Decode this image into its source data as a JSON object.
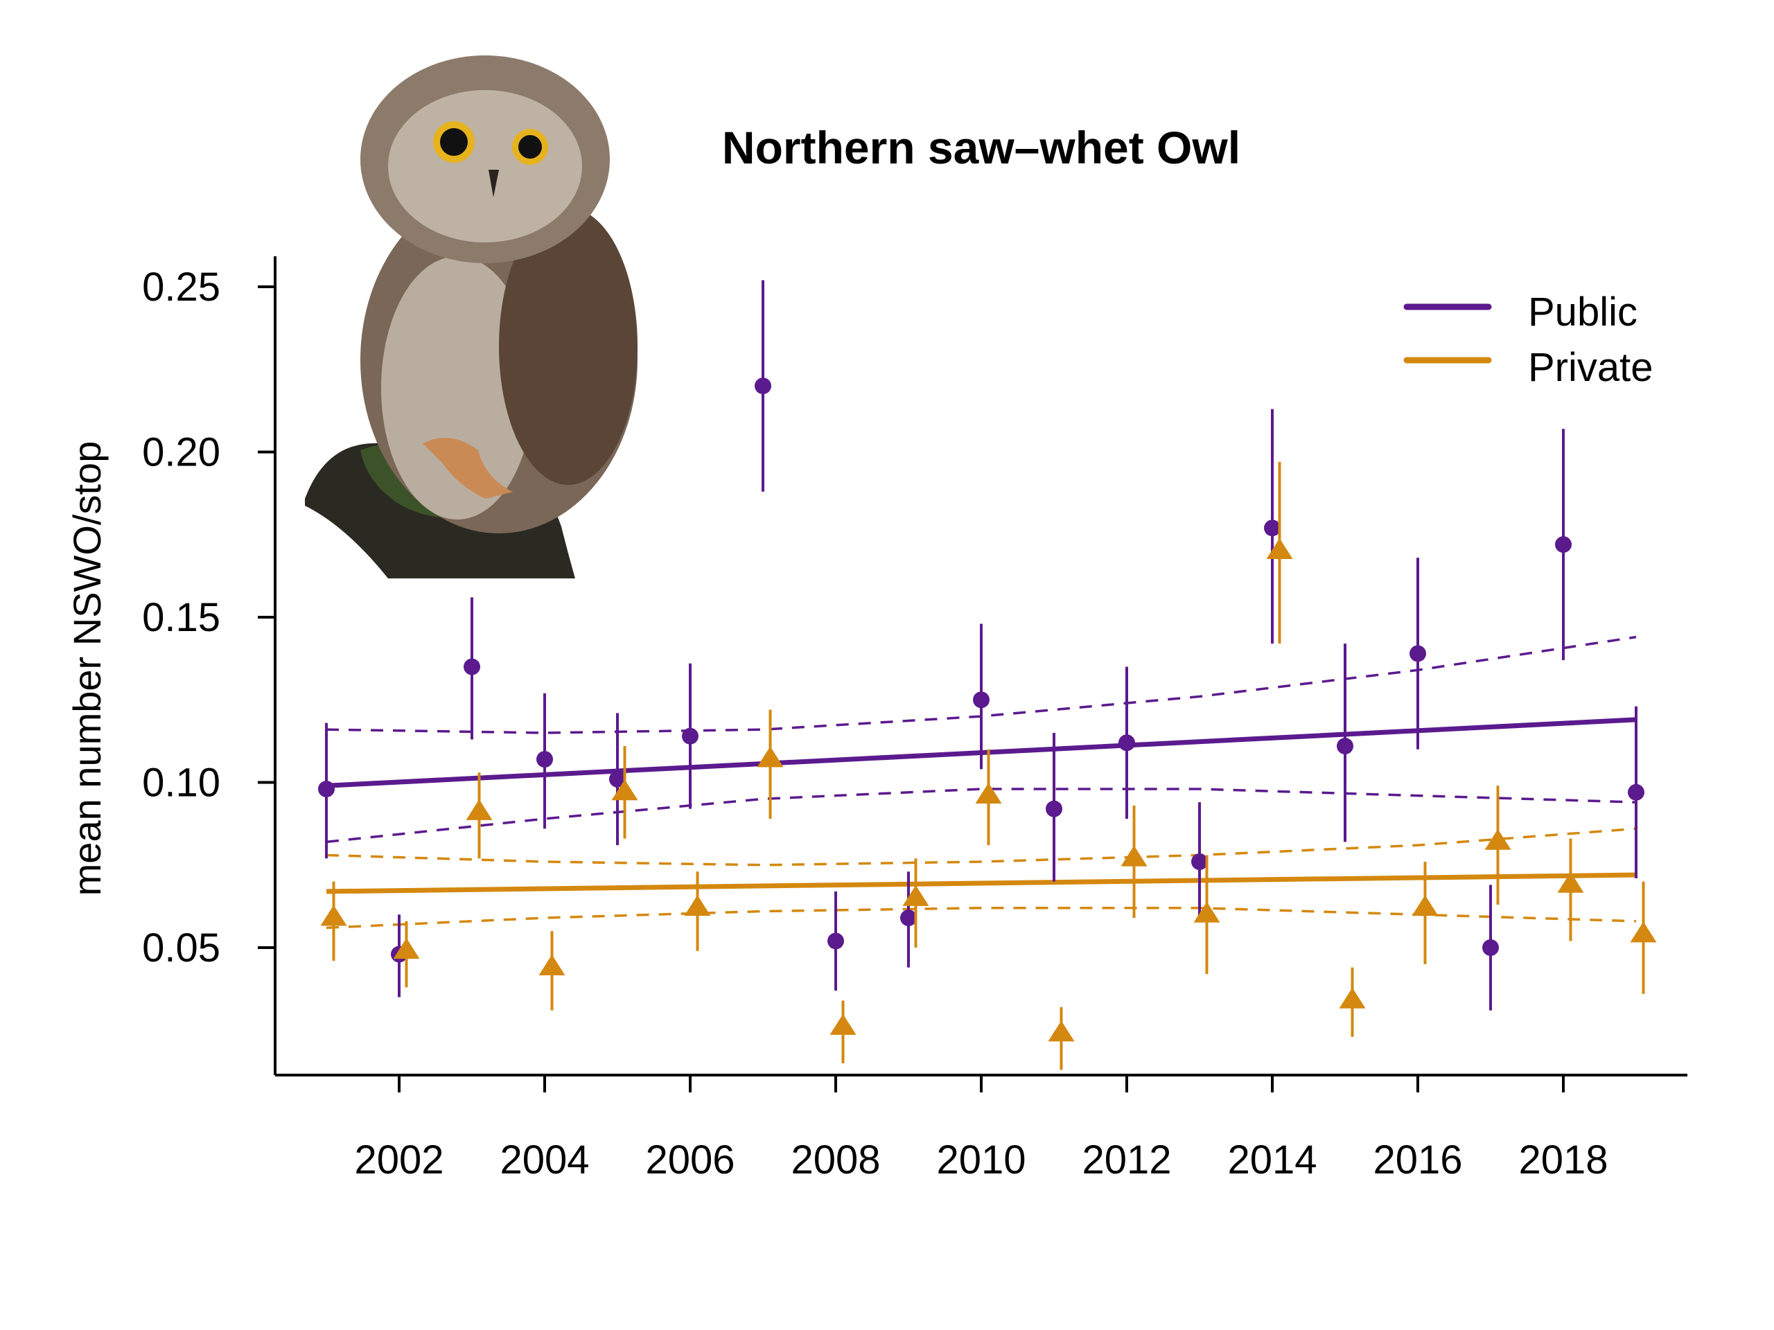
{
  "chart_data": {
    "type": "scatter",
    "title": "Northern saw–whet Owl",
    "xlabel": "",
    "ylabel": "mean number NSWO/stop",
    "xlim": [
      2000.15,
      2019.6
    ],
    "ylim": [
      0.011,
      0.26
    ],
    "x_ticks": [
      2002,
      2004,
      2006,
      2008,
      2010,
      2012,
      2014,
      2016,
      2018
    ],
    "x_tick_labels": [
      "2002",
      "2004",
      "2006",
      "2008",
      "2010",
      "2012",
      "2014",
      "2016",
      "2018"
    ],
    "y_ticks": [
      0.05,
      0.1,
      0.15,
      0.2,
      0.25
    ],
    "y_tick_labels": [
      "0.05",
      "0.10",
      "0.15",
      "0.20",
      "0.25"
    ],
    "grid": false,
    "legend": {
      "position": "top-right",
      "entries": [
        "Public",
        "Private"
      ]
    },
    "illustration": "owl-photo",
    "series": [
      {
        "name": "Public",
        "color": "#5b1a8e",
        "marker": "circle",
        "x_offset": 0,
        "x": [
          2001,
          2002,
          2003,
          2004,
          2005,
          2006,
          2007,
          2008,
          2009,
          2010,
          2011,
          2012,
          2013,
          2014,
          2015,
          2016,
          2017,
          2018,
          2019
        ],
        "y": [
          0.098,
          0.048,
          0.135,
          0.107,
          0.101,
          0.114,
          0.22,
          0.052,
          0.059,
          0.125,
          0.092,
          0.112,
          0.076,
          0.177,
          0.111,
          0.139,
          0.05,
          0.172,
          0.097
        ],
        "ci_low": [
          0.077,
          0.035,
          0.113,
          0.086,
          0.081,
          0.092,
          0.188,
          0.037,
          0.044,
          0.104,
          0.07,
          0.089,
          0.059,
          0.142,
          0.082,
          0.11,
          0.031,
          0.137,
          0.071
        ],
        "ci_high": [
          0.118,
          0.06,
          0.156,
          0.127,
          0.121,
          0.136,
          0.252,
          0.067,
          0.073,
          0.148,
          0.115,
          0.135,
          0.094,
          0.213,
          0.142,
          0.168,
          0.069,
          0.207,
          0.123
        ],
        "trend": {
          "x": [
            2001,
            2019
          ],
          "y": [
            0.099,
            0.119
          ]
        },
        "trend_ci_upper": {
          "x": [
            2001,
            2004,
            2007,
            2010,
            2013,
            2016,
            2019
          ],
          "y": [
            0.116,
            0.115,
            0.116,
            0.12,
            0.126,
            0.134,
            0.144
          ]
        },
        "trend_ci_lower": {
          "x": [
            2001,
            2004,
            2007,
            2010,
            2013,
            2016,
            2019
          ],
          "y": [
            0.082,
            0.089,
            0.095,
            0.098,
            0.098,
            0.096,
            0.094
          ]
        }
      },
      {
        "name": "Private",
        "color": "#d4880f",
        "marker": "triangle",
        "x_offset": 0.1,
        "x": [
          2001,
          2002,
          2003,
          2004,
          2005,
          2006,
          2007,
          2008,
          2009,
          2010,
          2011,
          2012,
          2013,
          2014,
          2015,
          2016,
          2017,
          2018,
          2019
        ],
        "y": [
          0.059,
          0.049,
          0.091,
          0.044,
          0.097,
          0.062,
          0.107,
          0.026,
          0.065,
          0.096,
          0.024,
          0.077,
          0.06,
          0.17,
          0.034,
          0.062,
          0.082,
          0.069,
          0.054
        ],
        "ci_low": [
          0.046,
          0.038,
          0.077,
          0.031,
          0.083,
          0.049,
          0.089,
          0.015,
          0.05,
          0.081,
          0.013,
          0.059,
          0.042,
          0.142,
          0.023,
          0.045,
          0.063,
          0.052,
          0.036
        ],
        "ci_high": [
          0.07,
          0.058,
          0.103,
          0.055,
          0.111,
          0.073,
          0.122,
          0.034,
          0.077,
          0.11,
          0.032,
          0.093,
          0.078,
          0.197,
          0.044,
          0.076,
          0.099,
          0.083,
          0.07
        ],
        "trend": {
          "x": [
            2001,
            2019
          ],
          "y": [
            0.067,
            0.072
          ]
        },
        "trend_ci_upper": {
          "x": [
            2001,
            2004,
            2007,
            2010,
            2013,
            2016,
            2019
          ],
          "y": [
            0.078,
            0.076,
            0.075,
            0.076,
            0.078,
            0.081,
            0.086
          ]
        },
        "trend_ci_lower": {
          "x": [
            2001,
            2004,
            2007,
            2010,
            2013,
            2016,
            2019
          ],
          "y": [
            0.056,
            0.059,
            0.061,
            0.062,
            0.062,
            0.06,
            0.058
          ]
        }
      }
    ]
  }
}
